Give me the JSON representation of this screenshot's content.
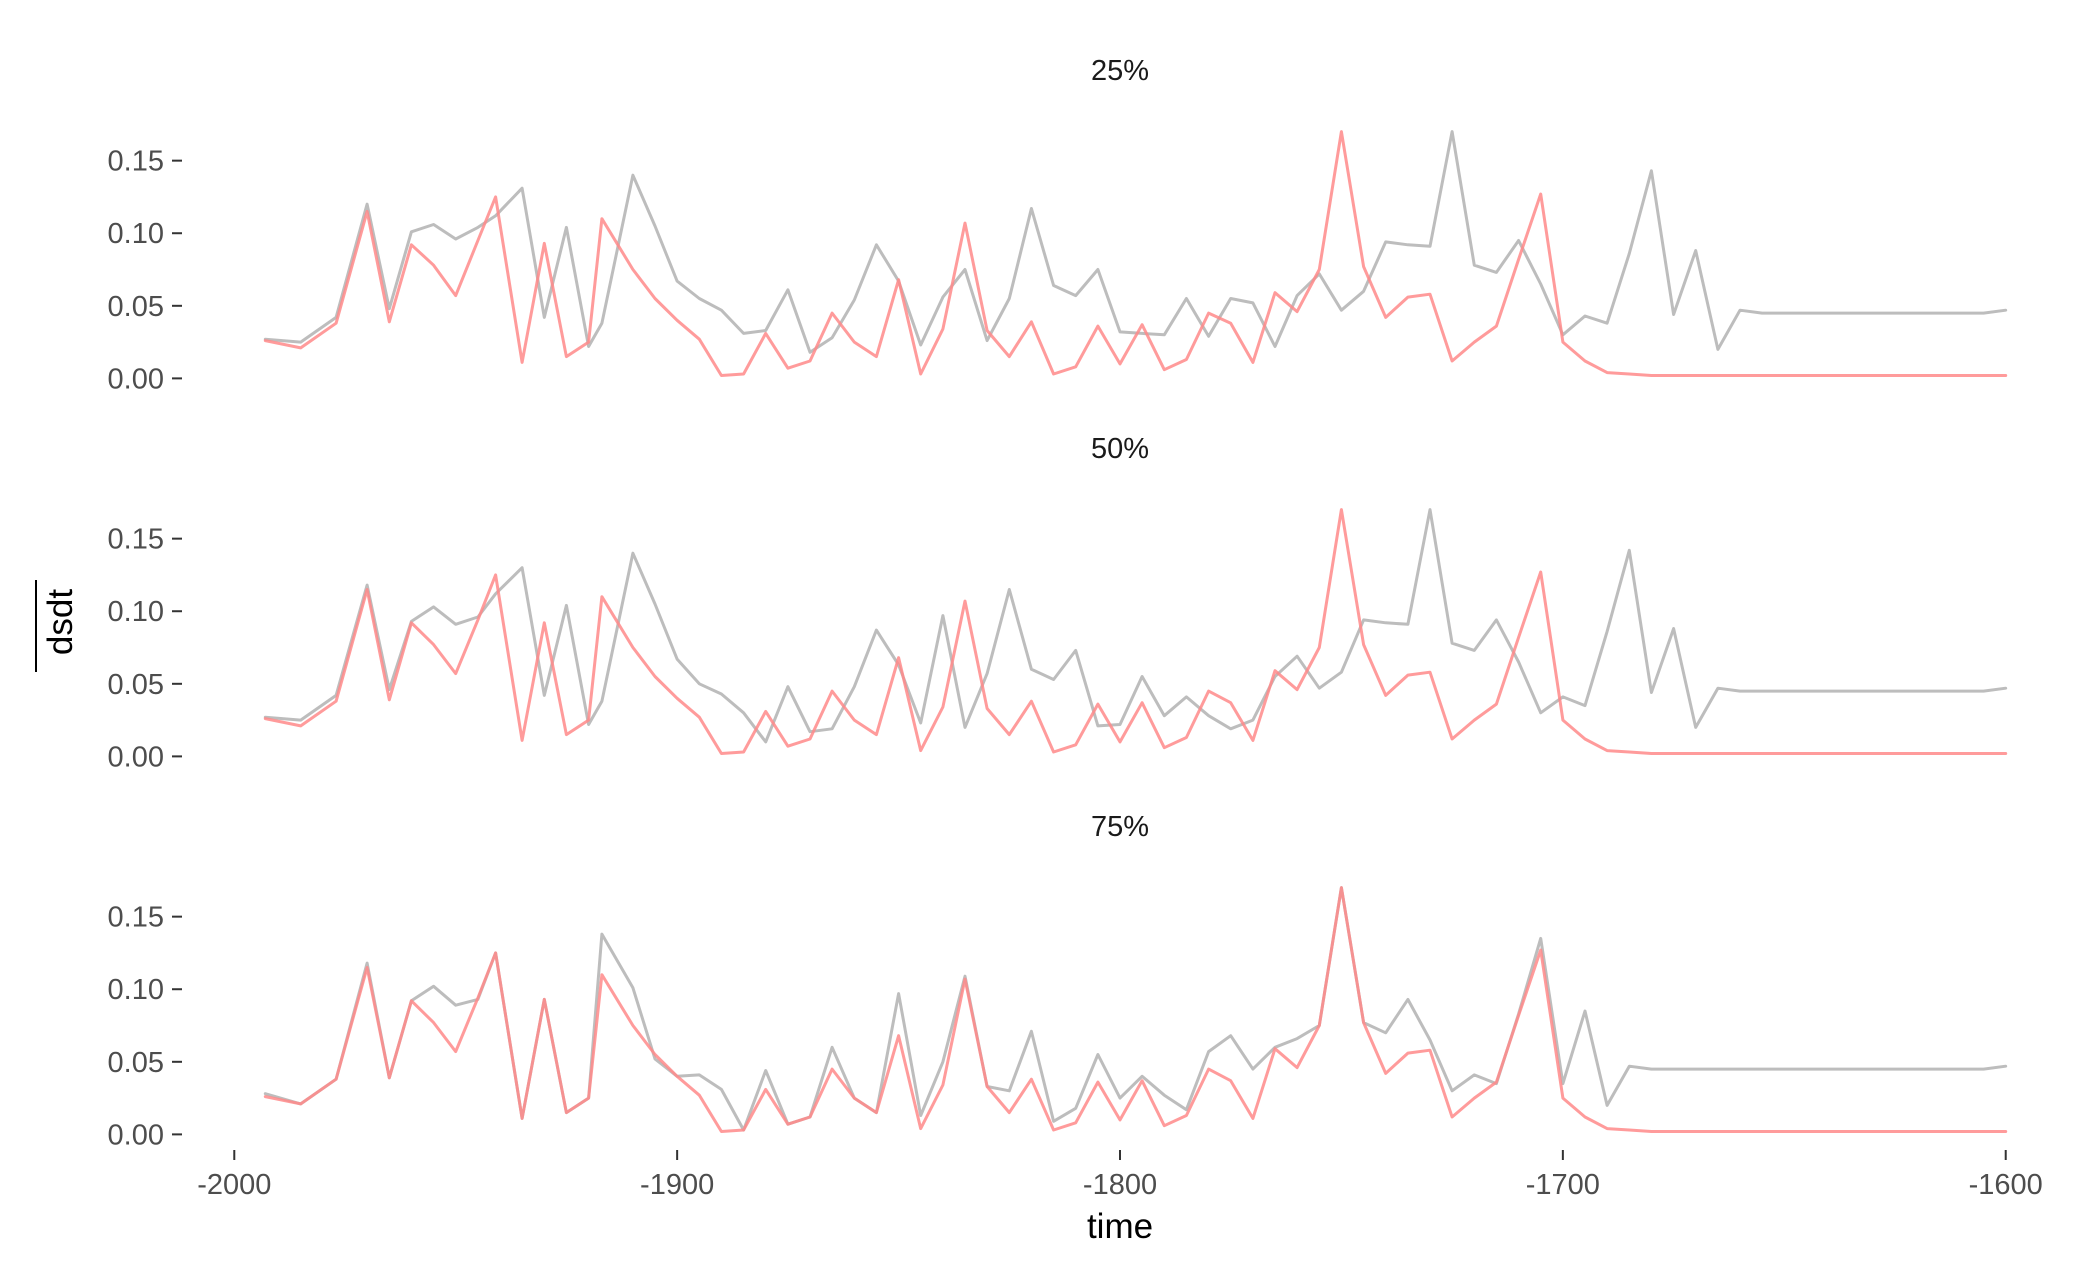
{
  "chart_data": {
    "type": "line",
    "xlabel": "time",
    "ylabel": "dsdt",
    "xlim": [
      -2010,
      -1590
    ],
    "x_ticks": [
      -2000,
      -1900,
      -1800,
      -1700,
      -1600
    ],
    "y_ticks": [
      0.0,
      0.05,
      0.1,
      0.15
    ],
    "ylim": [
      -0.008,
      0.178
    ],
    "colors": {
      "gray_series": "#bdbdbd",
      "red_series": "#ff8a8a"
    },
    "legend": "none",
    "grid": false,
    "x": [
      -1993,
      -1985,
      -1977,
      -1970,
      -1965,
      -1960,
      -1955,
      -1950,
      -1945,
      -1941,
      -1935,
      -1930,
      -1925,
      -1920,
      -1917,
      -1910,
      -1905,
      -1900,
      -1895,
      -1890,
      -1885,
      -1880,
      -1875,
      -1870,
      -1865,
      -1860,
      -1855,
      -1850,
      -1845,
      -1840,
      -1835,
      -1830,
      -1825,
      -1820,
      -1815,
      -1810,
      -1805,
      -1800,
      -1795,
      -1790,
      -1785,
      -1780,
      -1775,
      -1770,
      -1765,
      -1760,
      -1755,
      -1750,
      -1745,
      -1740,
      -1735,
      -1730,
      -1725,
      -1720,
      -1715,
      -1710,
      -1705,
      -1700,
      -1695,
      -1690,
      -1685,
      -1680,
      -1675,
      -1670,
      -1665,
      -1660,
      -1655,
      -1650,
      -1645,
      -1640,
      -1635,
      -1630,
      -1625,
      -1620,
      -1615,
      -1610,
      -1605,
      -1600
    ],
    "facets": [
      {
        "title": "25%",
        "series": [
          {
            "values": [
              0.027,
              0.025,
              0.042,
              0.12,
              0.048,
              0.101,
              0.106,
              0.096,
              0.104,
              0.112,
              0.131,
              0.042,
              0.104,
              0.022,
              0.038,
              0.14,
              0.105,
              0.067,
              0.055,
              0.047,
              0.031,
              0.033,
              0.061,
              0.018,
              0.028,
              0.054,
              0.092,
              0.067,
              0.023,
              0.056,
              0.075,
              0.026,
              0.055,
              0.117,
              0.064,
              0.057,
              0.075,
              0.032,
              0.031,
              0.03,
              0.055,
              0.029,
              0.055,
              0.052,
              0.022,
              0.057,
              0.072,
              0.047,
              0.06,
              0.094,
              0.092,
              0.091,
              0.17,
              0.078,
              0.073,
              0.095,
              0.065,
              0.03,
              0.043,
              0.038,
              0.086,
              0.143,
              0.044,
              0.088,
              0.02,
              0.047,
              0.045,
              0.045,
              0.045,
              0.045,
              0.045,
              0.045,
              0.045,
              0.045,
              0.045,
              0.045,
              0.045,
              0.047
            ]
          },
          {
            "values": [
              0.026,
              0.021,
              0.038,
              0.115,
              0.039,
              0.092,
              0.078,
              0.057,
              0.095,
              0.125,
              0.011,
              0.093,
              0.015,
              0.025,
              0.11,
              0.075,
              0.055,
              0.04,
              0.027,
              0.002,
              0.003,
              0.031,
              0.007,
              0.012,
              0.045,
              0.025,
              0.015,
              0.068,
              0.003,
              0.034,
              0.107,
              0.033,
              0.015,
              0.039,
              0.003,
              0.008,
              0.036,
              0.01,
              0.037,
              0.006,
              0.013,
              0.045,
              0.038,
              0.011,
              0.059,
              0.046,
              0.075,
              0.17,
              0.077,
              0.042,
              0.056,
              0.058,
              0.012,
              0.025,
              0.036,
              0.082,
              0.127,
              0.025,
              0.012,
              0.004,
              0.003,
              0.002,
              0.002,
              0.002,
              0.002,
              0.002,
              0.002,
              0.002,
              0.002,
              0.002,
              0.002,
              0.002,
              0.002,
              0.002,
              0.002,
              0.002,
              0.002,
              0.002
            ]
          }
        ]
      },
      {
        "title": "50%",
        "series": [
          {
            "values": [
              0.027,
              0.025,
              0.042,
              0.118,
              0.046,
              0.093,
              0.103,
              0.091,
              0.096,
              0.112,
              0.13,
              0.042,
              0.104,
              0.022,
              0.038,
              0.14,
              0.105,
              0.067,
              0.05,
              0.043,
              0.03,
              0.01,
              0.048,
              0.017,
              0.019,
              0.048,
              0.087,
              0.063,
              0.023,
              0.097,
              0.02,
              0.057,
              0.115,
              0.06,
              0.053,
              0.073,
              0.021,
              0.022,
              0.055,
              0.028,
              0.041,
              0.028,
              0.019,
              0.025,
              0.055,
              0.069,
              0.047,
              0.058,
              0.094,
              0.092,
              0.091,
              0.17,
              0.078,
              0.073,
              0.094,
              0.065,
              0.03,
              0.041,
              0.035,
              0.086,
              0.142,
              0.044,
              0.088,
              0.02,
              0.047,
              0.045,
              0.045,
              0.045,
              0.045,
              0.045,
              0.045,
              0.045,
              0.045,
              0.045,
              0.045,
              0.045,
              0.045,
              0.047
            ]
          },
          {
            "values": [
              0.026,
              0.021,
              0.038,
              0.115,
              0.039,
              0.092,
              0.077,
              0.057,
              0.094,
              0.125,
              0.011,
              0.092,
              0.015,
              0.025,
              0.11,
              0.075,
              0.055,
              0.04,
              0.027,
              0.002,
              0.003,
              0.031,
              0.007,
              0.012,
              0.045,
              0.025,
              0.015,
              0.068,
              0.004,
              0.034,
              0.107,
              0.033,
              0.015,
              0.038,
              0.003,
              0.008,
              0.036,
              0.01,
              0.037,
              0.006,
              0.013,
              0.045,
              0.037,
              0.011,
              0.059,
              0.046,
              0.075,
              0.17,
              0.077,
              0.042,
              0.056,
              0.058,
              0.012,
              0.025,
              0.036,
              0.082,
              0.127,
              0.025,
              0.012,
              0.004,
              0.003,
              0.002,
              0.002,
              0.002,
              0.002,
              0.002,
              0.002,
              0.002,
              0.002,
              0.002,
              0.002,
              0.002,
              0.002,
              0.002,
              0.002,
              0.002,
              0.002,
              0.002
            ]
          }
        ]
      },
      {
        "title": "75%",
        "series": [
          {
            "values": [
              0.028,
              0.021,
              0.038,
              0.118,
              0.039,
              0.092,
              0.102,
              0.089,
              0.093,
              0.125,
              0.011,
              0.093,
              0.015,
              0.025,
              0.138,
              0.101,
              0.052,
              0.04,
              0.041,
              0.031,
              0.003,
              0.044,
              0.007,
              0.012,
              0.06,
              0.025,
              0.015,
              0.097,
              0.013,
              0.05,
              0.109,
              0.033,
              0.03,
              0.071,
              0.009,
              0.018,
              0.055,
              0.025,
              0.04,
              0.027,
              0.017,
              0.057,
              0.068,
              0.045,
              0.06,
              0.066,
              0.075,
              0.17,
              0.077,
              0.07,
              0.093,
              0.065,
              0.03,
              0.041,
              0.035,
              0.083,
              0.135,
              0.035,
              0.085,
              0.02,
              0.047,
              0.045,
              0.045,
              0.045,
              0.045,
              0.045,
              0.045,
              0.045,
              0.045,
              0.045,
              0.045,
              0.045,
              0.045,
              0.045,
              0.045,
              0.045,
              0.045,
              0.047
            ]
          },
          {
            "values": [
              0.026,
              0.021,
              0.038,
              0.115,
              0.039,
              0.092,
              0.077,
              0.057,
              0.094,
              0.125,
              0.011,
              0.093,
              0.015,
              0.025,
              0.11,
              0.075,
              0.055,
              0.04,
              0.027,
              0.002,
              0.003,
              0.031,
              0.007,
              0.012,
              0.045,
              0.025,
              0.015,
              0.068,
              0.004,
              0.034,
              0.107,
              0.033,
              0.015,
              0.038,
              0.003,
              0.008,
              0.036,
              0.01,
              0.037,
              0.006,
              0.013,
              0.045,
              0.037,
              0.011,
              0.059,
              0.046,
              0.075,
              0.17,
              0.077,
              0.042,
              0.056,
              0.058,
              0.012,
              0.025,
              0.036,
              0.082,
              0.127,
              0.025,
              0.012,
              0.004,
              0.003,
              0.002,
              0.002,
              0.002,
              0.002,
              0.002,
              0.002,
              0.002,
              0.002,
              0.002,
              0.002,
              0.002,
              0.002,
              0.002,
              0.002,
              0.002,
              0.002,
              0.002
            ]
          }
        ]
      }
    ]
  }
}
